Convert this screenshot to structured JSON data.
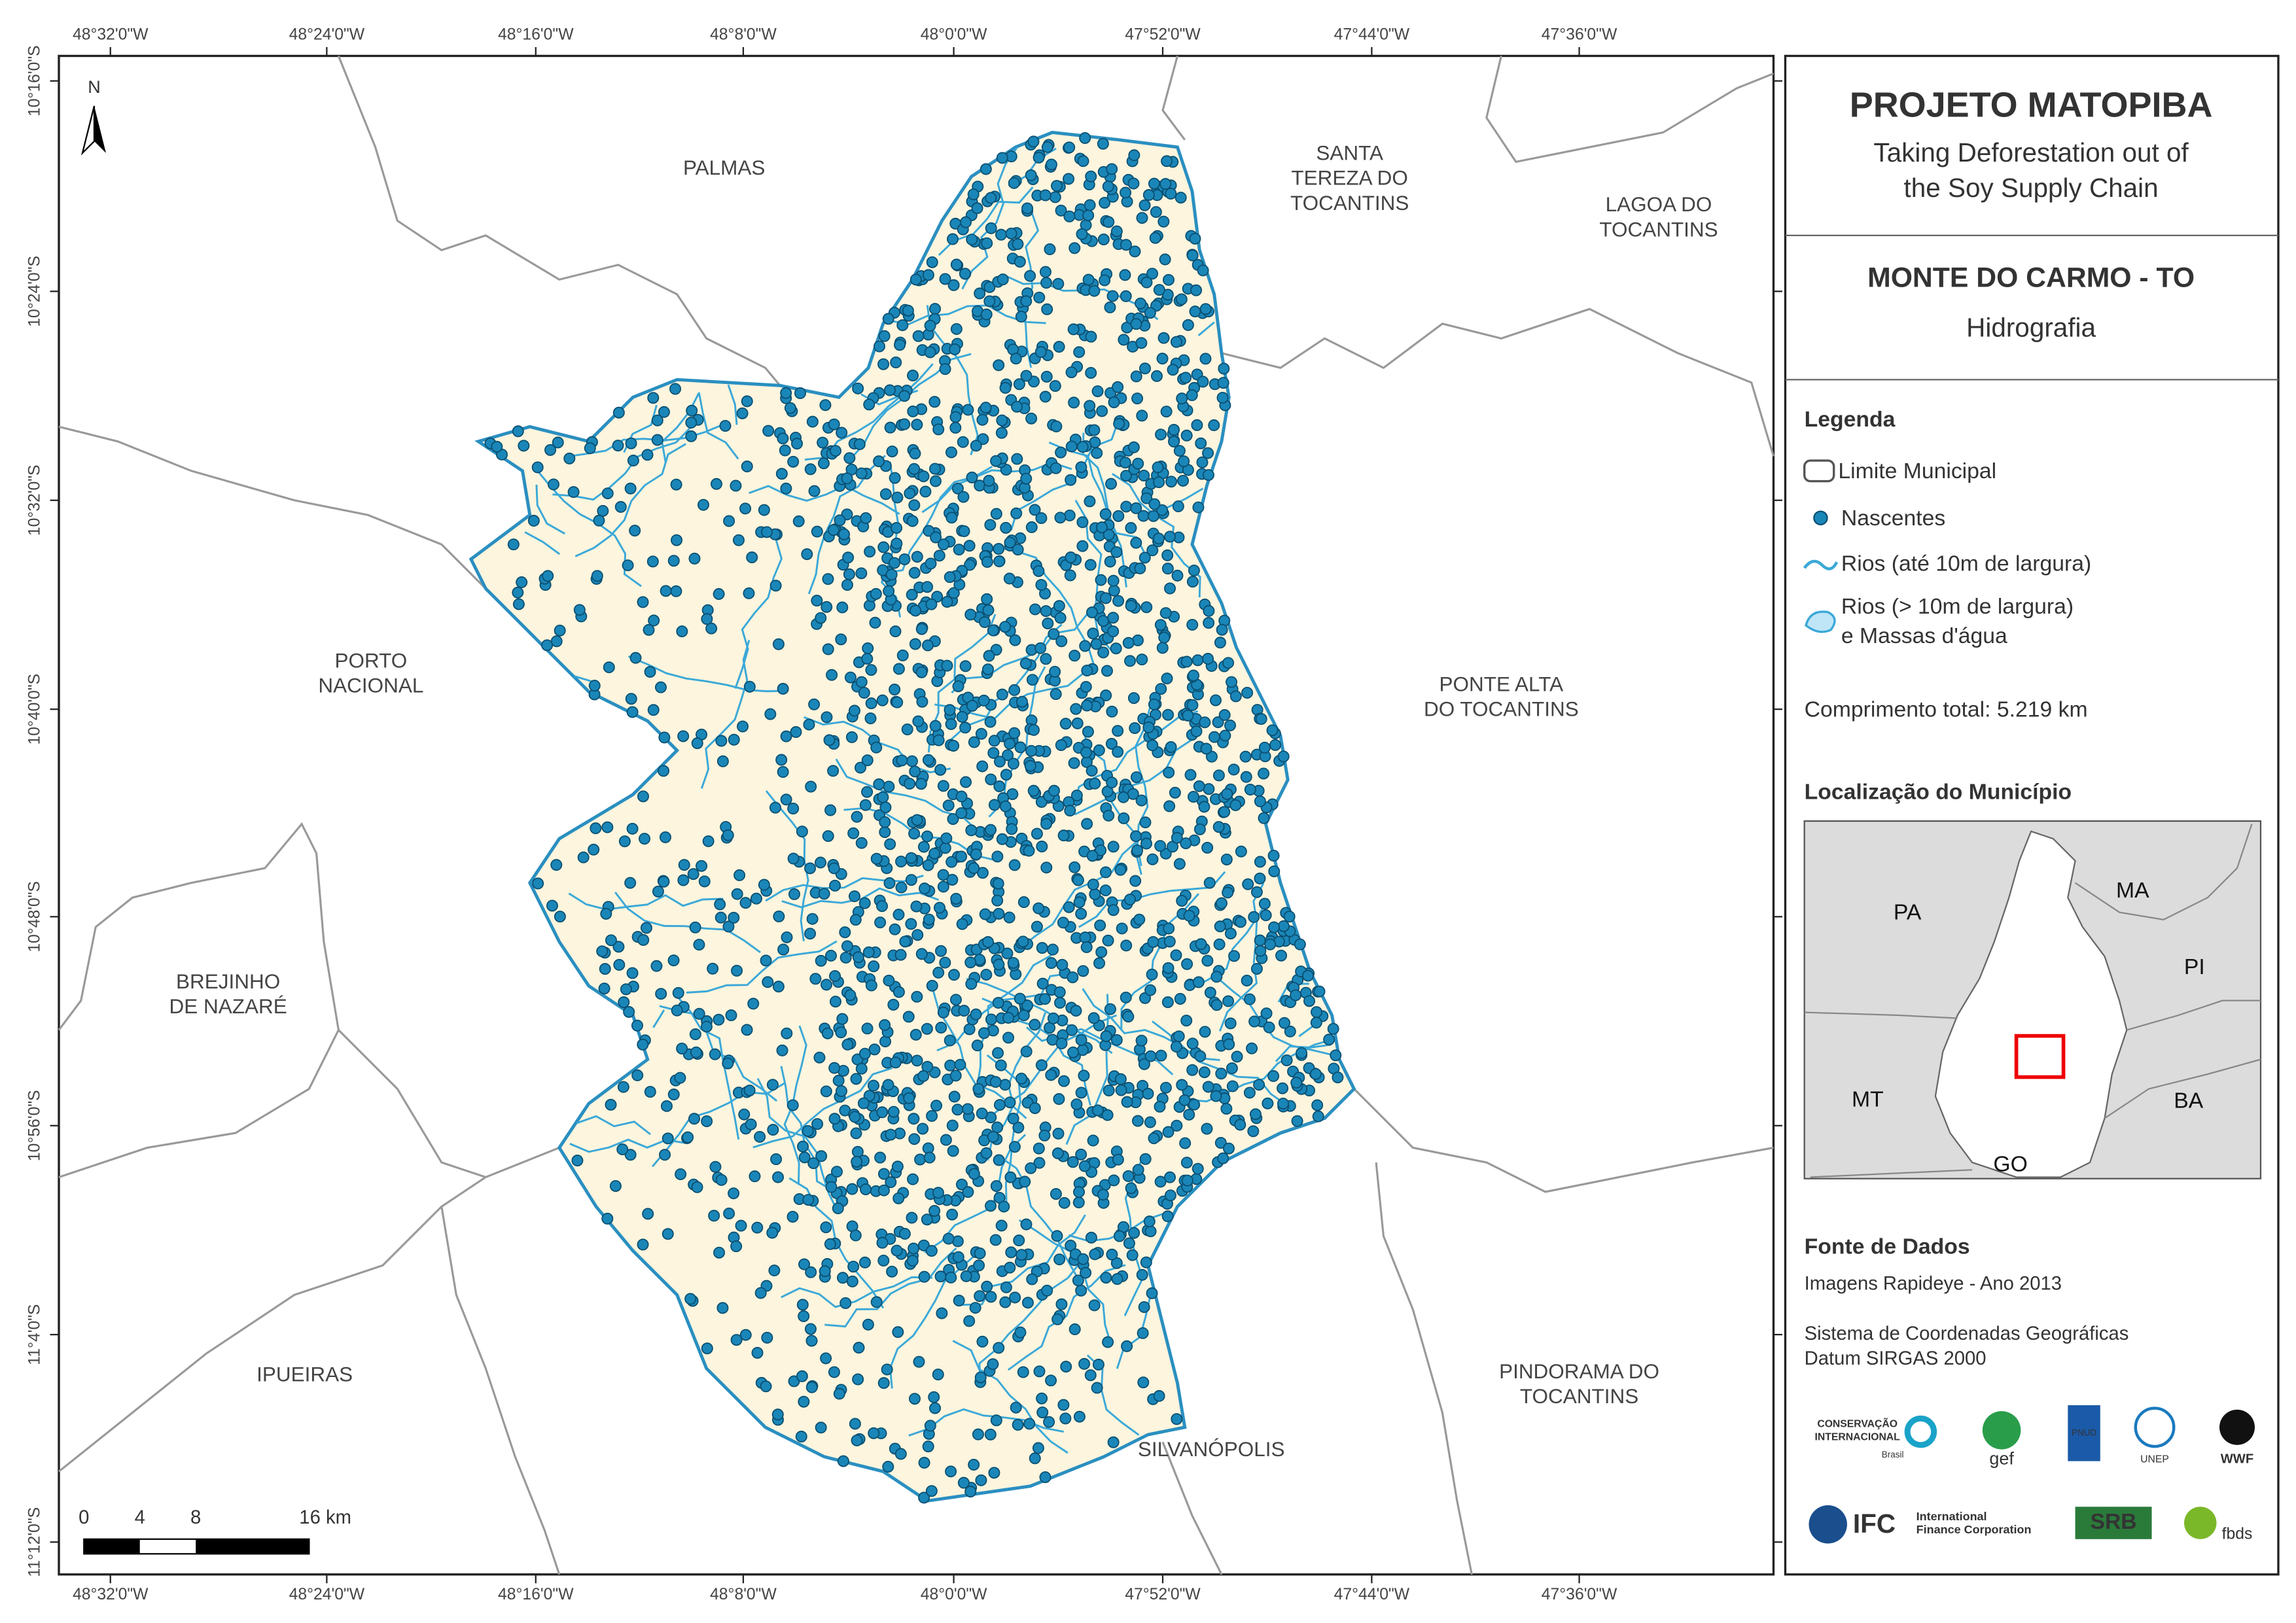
{
  "map": {
    "lon_labels": [
      "48°32'0\"W",
      "48°24'0\"W",
      "48°16'0\"W",
      "48°8'0\"W",
      "48°0'0\"W",
      "47°52'0\"W",
      "47°44'0\"W",
      "47°36'0\"W"
    ],
    "lat_labels": [
      "10°16'0\"S",
      "10°24'0\"S",
      "10°32'0\"S",
      "10°40'0\"S",
      "10°48'0\"S",
      "10°56'0\"S",
      "11°4'0\"S",
      "11°12'0\"S"
    ],
    "north": "N",
    "places": [
      [
        "PALMAS"
      ],
      [
        "SANTA",
        "TEREZA DO",
        "TOCANTINS"
      ],
      [
        "LAGOA DO",
        "TOCANTINS"
      ],
      [
        "PORTO",
        "NACIONAL"
      ],
      [
        "PONTE ALTA",
        "DO TOCANTINS"
      ],
      [
        "BREJINHO",
        "DE NAZARÉ"
      ],
      [
        "IPUEIRAS"
      ],
      [
        "PINDORAMA DO",
        "TOCANTINS"
      ],
      [
        "SILVANÓPOLIS"
      ]
    ],
    "scale_labels": [
      "0",
      "4",
      "8",
      "16 km"
    ]
  },
  "panel": {
    "title": "PROJETO MATOPIBA",
    "subtitle": [
      "Taking Deforestation out of",
      "the Soy Supply Chain"
    ],
    "municipality": "MONTE DO CARMO - TO",
    "theme": "Hidrografia",
    "legend_title": "Legenda",
    "legend_items": [
      "Limite Municipal",
      "Nascentes",
      "Rios (até 10m de largura)",
      "Rios (> 10m de largura)",
      "e Massas d'água"
    ],
    "total_length": "Comprimento total: 5.219 km",
    "location_title": "Localização do Município",
    "location_labels": [
      "PA",
      "MA",
      "PI",
      "MT",
      "BA",
      "GO"
    ],
    "sources_title": "Fonte de Dados",
    "sources": [
      "Imagens Rapideye - Ano 2013",
      "Sistema de Coordenadas Geográficas",
      "Datum SIRGAS 2000"
    ],
    "logos": [
      "CONSERVAÇÃO",
      "INTERNACIONAL",
      "Brasil",
      "gef",
      "PNUD",
      "UNEP",
      "WWF",
      "IFC",
      "International",
      "Finance Corporation",
      "SRB",
      "fbds"
    ]
  }
}
